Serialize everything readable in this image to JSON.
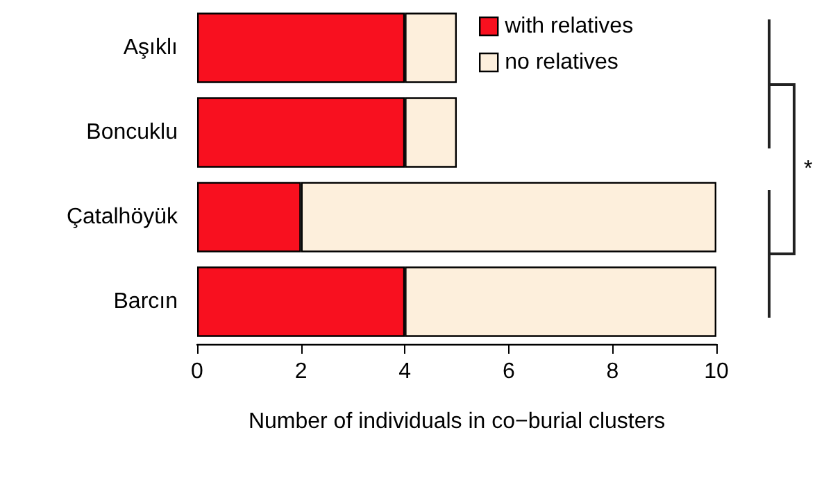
{
  "chart_data": {
    "type": "bar",
    "orientation": "horizontal",
    "stacked": true,
    "categories": [
      "Aşıklı",
      "Boncuklu",
      "Çatalhöyük",
      "Barcın"
    ],
    "series": [
      {
        "name": "with relatives",
        "color": "#f8101f",
        "values": [
          4,
          4,
          2,
          4
        ]
      },
      {
        "name": "no relatives",
        "color": "#fdefdc",
        "values": [
          1,
          1,
          8,
          6
        ]
      }
    ],
    "xlabel": "Number of individuals in co−burial clusters",
    "xlim": [
      0,
      10
    ],
    "xticks": [
      0,
      2,
      4,
      6,
      8,
      10
    ],
    "grid": false,
    "legend": "top right",
    "annotations": [
      "*"
    ]
  }
}
